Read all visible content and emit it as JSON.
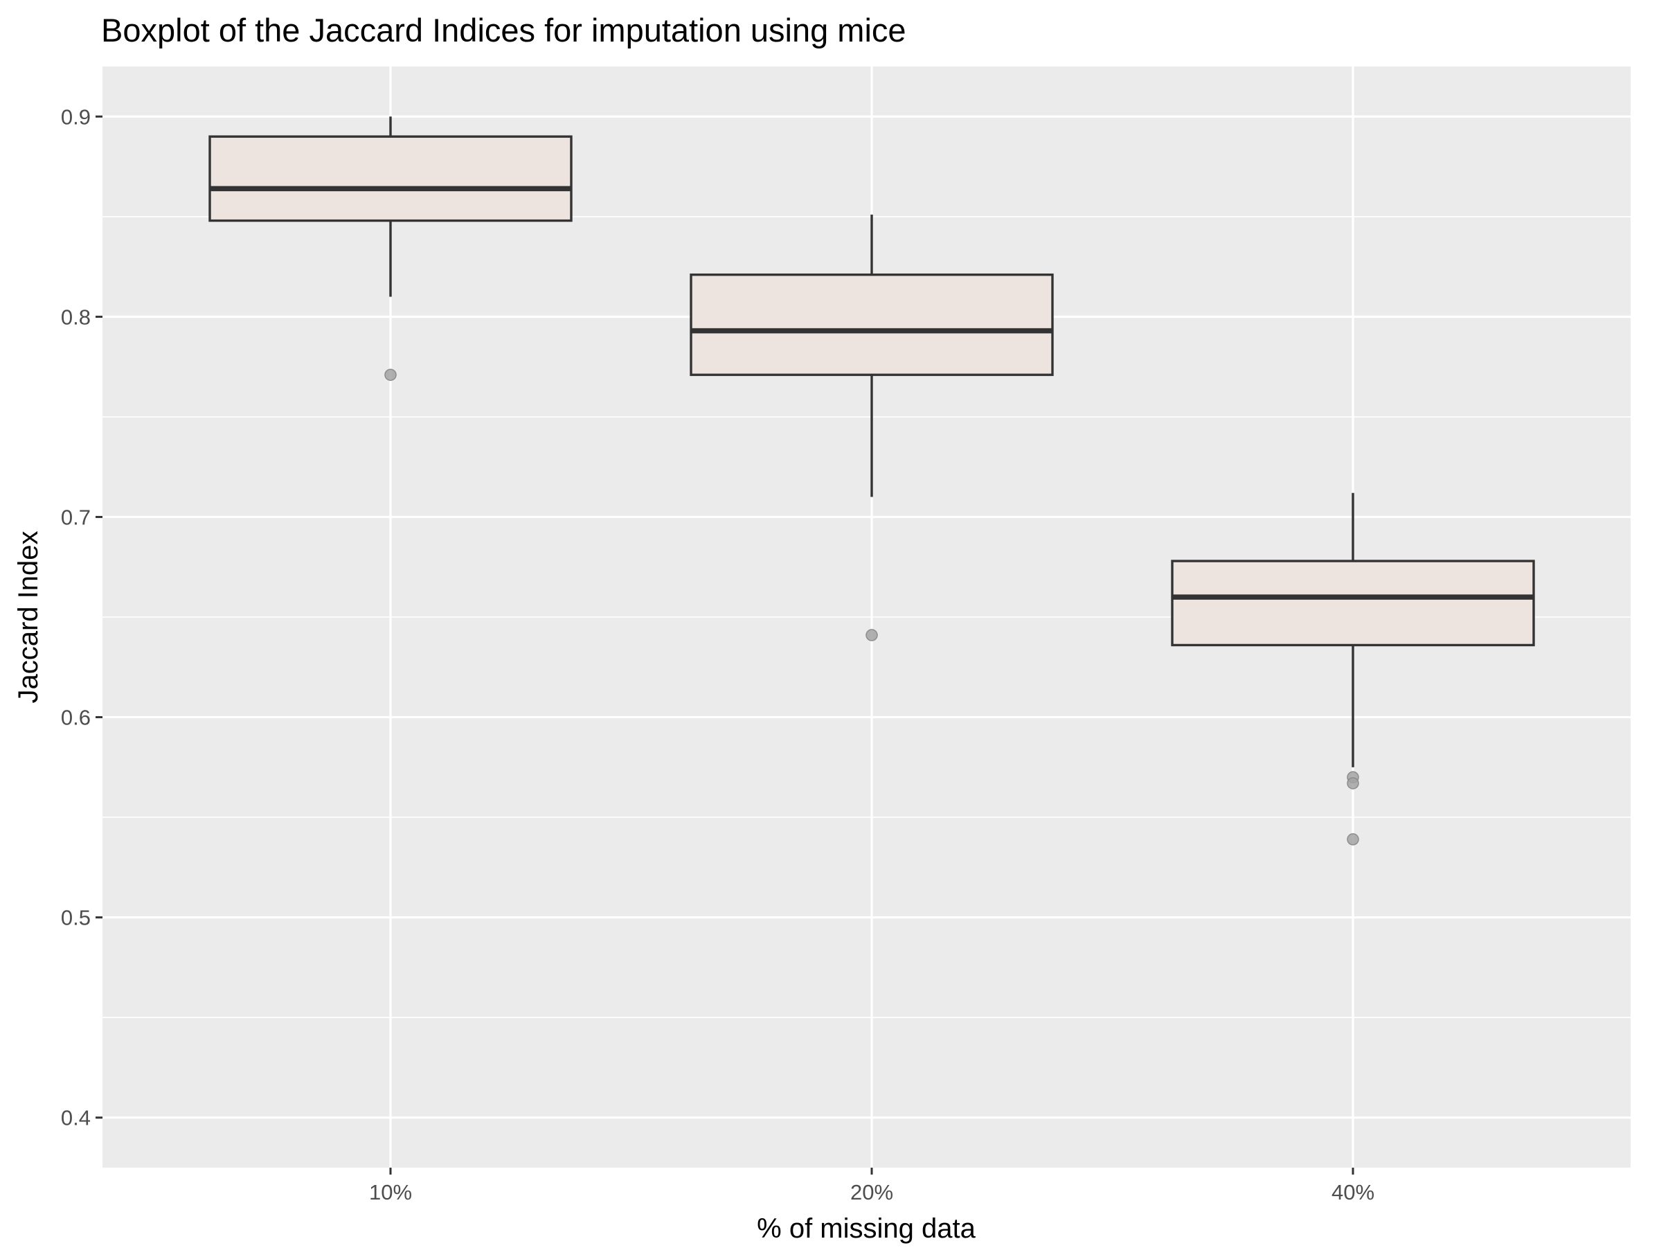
{
  "chart_data": {
    "type": "boxplot",
    "title": "Boxplot of the Jaccard Indices for imputation using mice",
    "xlabel": "% of missing data",
    "ylabel": "Jaccard Index",
    "categories": [
      "10%",
      "20%",
      "40%"
    ],
    "yticks": [
      "0.4",
      "0.5",
      "0.6",
      "0.7",
      "0.8",
      "0.9"
    ],
    "ylim": [
      0.375,
      0.925
    ],
    "grid": true,
    "legend": "none",
    "boxes": [
      {
        "category": "10%",
        "whisker_low": 0.81,
        "q1": 0.848,
        "median": 0.864,
        "q3": 0.89,
        "whisker_high": 0.9,
        "outliers": [
          0.771
        ]
      },
      {
        "category": "20%",
        "whisker_low": 0.71,
        "q1": 0.771,
        "median": 0.793,
        "q3": 0.821,
        "whisker_high": 0.851,
        "outliers": [
          0.641
        ]
      },
      {
        "category": "40%",
        "whisker_low": 0.575,
        "q1": 0.636,
        "median": 0.66,
        "q3": 0.678,
        "whisker_high": 0.712,
        "outliers": [
          0.57,
          0.567,
          0.539
        ]
      }
    ],
    "colors": {
      "panel_background": "#ebebeb",
      "grid": "#ffffff",
      "box_fill": "#ede4df",
      "box_line": "#333333",
      "outlier": "#a3a3a3"
    }
  }
}
